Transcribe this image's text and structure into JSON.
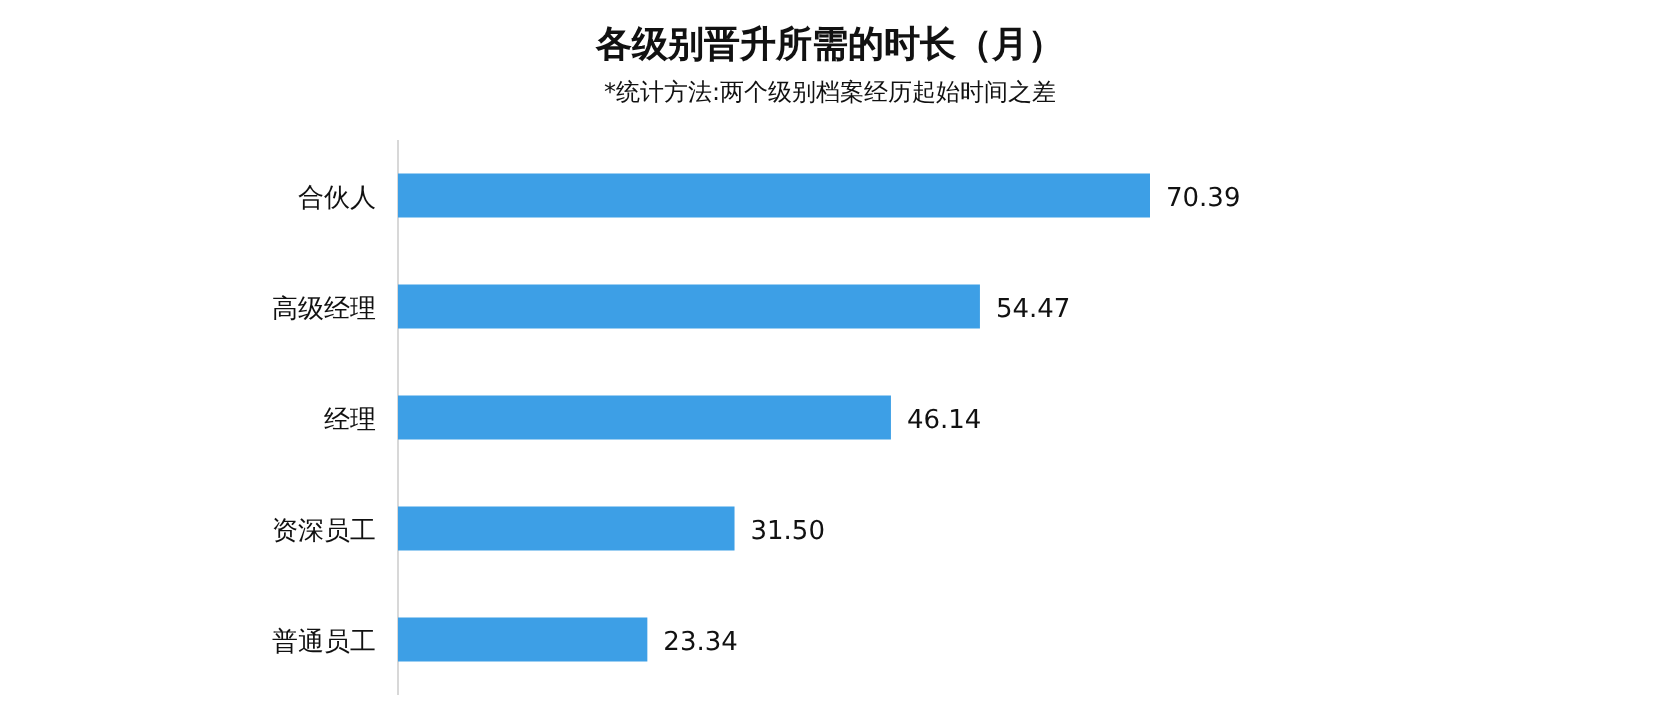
{
  "chart_data": {
    "type": "bar",
    "orientation": "horizontal",
    "title": "各级别晋升所需的时长（月）",
    "subtitle": "*统计方法:两个级别档案经历起始时间之差",
    "categories": [
      "合伙人",
      "高级经理",
      "经理",
      "资深员工",
      "普通员工"
    ],
    "values": [
      70.39,
      54.47,
      46.14,
      31.5,
      23.34
    ],
    "value_labels": [
      "70.39",
      "54.47",
      "46.14",
      "31.50",
      "23.34"
    ],
    "color": "#3d9fe6"
  }
}
